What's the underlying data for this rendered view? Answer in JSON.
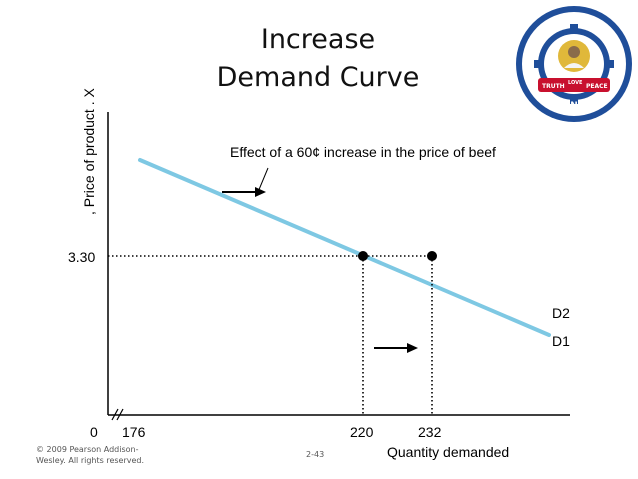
{
  "slide": {
    "title_line1": "Increase",
    "title_line2": "Demand Curve",
    "footer": "© 2009 Pearson Addison-Wesley. All rights reserved.",
    "page_number": "2-43"
  },
  "logo": {
    "top_text": "SRI SAI RAM INSTITUTE OF TECHNOLOGY",
    "left_text": "TRUTH",
    "center_text": "LOVE",
    "right_text": "PEACE",
    "bottom_text": "CHENNAI",
    "colors": {
      "ring": "#1f4e9a",
      "banner": "#c8102e",
      "gold": "#e0b83a"
    }
  },
  "chart_data": {
    "type": "line",
    "ylabel": ", Price of product . X",
    "xlabel": "Quantity demanded",
    "annotation": "Effect of a 60¢ increase in the price of beef",
    "x_ticks": [
      "0",
      "176",
      "220",
      "232"
    ],
    "y_ticks": [
      "3.30"
    ],
    "axis_break": true,
    "series": [
      {
        "name": "D2",
        "label": "D2",
        "points": [
          [
            220,
            3.3
          ],
          [
            232,
            3.3
          ]
        ]
      },
      {
        "name": "D1",
        "label": "D1",
        "points": [
          [
            220,
            3.3
          ]
        ]
      }
    ],
    "curve_color": "#7ec8e3",
    "highlighted_points": [
      [
        220,
        3.3
      ],
      [
        232,
        3.3
      ]
    ],
    "guides": "dotted",
    "arrows": [
      "right",
      "right"
    ]
  }
}
